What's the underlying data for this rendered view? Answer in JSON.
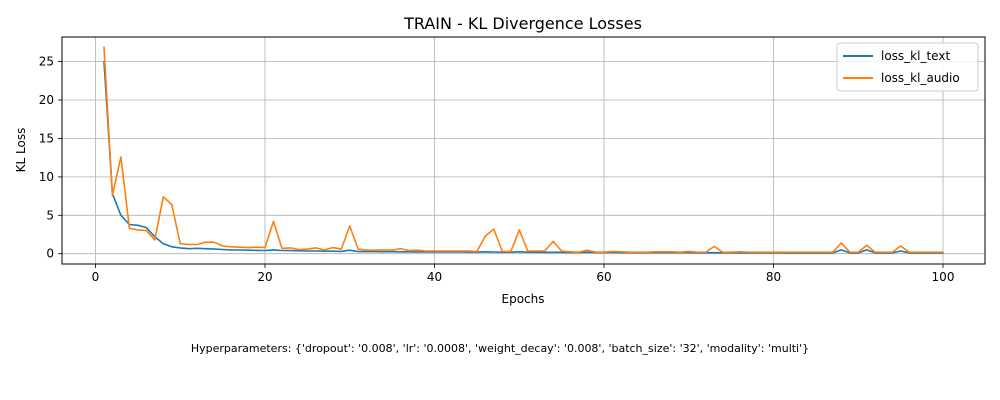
{
  "chart_data": {
    "type": "line",
    "title": "TRAIN - KL Divergence Losses",
    "xlabel": "Epochs",
    "ylabel": "KL Loss",
    "xlim": [
      -3.95,
      104.95
    ],
    "ylim": [
      -1.34,
      28.2
    ],
    "xticks": [
      0,
      20,
      40,
      60,
      80,
      100
    ],
    "yticks": [
      0,
      5,
      10,
      15,
      20,
      25
    ],
    "grid": true,
    "legend_position": "top-right",
    "series": [
      {
        "name": "loss_kl_text",
        "color": "#1f77b4",
        "x": [
          1,
          2,
          3,
          4,
          5,
          6,
          7,
          8,
          9,
          10,
          11,
          12,
          13,
          14,
          15,
          16,
          17,
          18,
          19,
          20,
          21,
          22,
          23,
          24,
          25,
          26,
          27,
          28,
          29,
          30,
          31,
          32,
          33,
          34,
          35,
          36,
          37,
          38,
          39,
          40,
          41,
          42,
          43,
          44,
          45,
          46,
          47,
          48,
          49,
          50,
          51,
          52,
          53,
          54,
          55,
          56,
          57,
          58,
          59,
          60,
          61,
          62,
          63,
          64,
          65,
          66,
          67,
          68,
          69,
          70,
          71,
          72,
          73,
          74,
          75,
          76,
          77,
          78,
          79,
          80,
          81,
          82,
          83,
          84,
          85,
          86,
          87,
          88,
          89,
          90,
          91,
          92,
          93,
          94,
          95,
          96,
          97,
          98,
          99,
          100
        ],
        "y": [
          25.0,
          7.8,
          5.0,
          3.8,
          3.7,
          3.4,
          2.2,
          1.3,
          0.9,
          0.75,
          0.65,
          0.7,
          0.65,
          0.6,
          0.55,
          0.5,
          0.48,
          0.45,
          0.43,
          0.42,
          0.5,
          0.42,
          0.4,
          0.38,
          0.35,
          0.35,
          0.33,
          0.32,
          0.3,
          0.45,
          0.28,
          0.27,
          0.27,
          0.26,
          0.26,
          0.25,
          0.25,
          0.24,
          0.24,
          0.23,
          0.22,
          0.22,
          0.22,
          0.21,
          0.21,
          0.25,
          0.22,
          0.2,
          0.19,
          0.25,
          0.19,
          0.19,
          0.18,
          0.18,
          0.18,
          0.17,
          0.17,
          0.2,
          0.16,
          0.16,
          0.16,
          0.15,
          0.15,
          0.15,
          0.15,
          0.15,
          0.14,
          0.14,
          0.14,
          0.14,
          0.13,
          0.13,
          0.13,
          0.13,
          0.13,
          0.12,
          0.12,
          0.12,
          0.12,
          0.12,
          0.12,
          0.11,
          0.11,
          0.11,
          0.11,
          0.11,
          0.11,
          0.5,
          0.11,
          0.11,
          0.5,
          0.11,
          0.1,
          0.1,
          0.35,
          0.1,
          0.1,
          0.1,
          0.1,
          0.1
        ]
      },
      {
        "name": "loss_kl_audio",
        "color": "#ff7f0e",
        "x": [
          1,
          2,
          3,
          4,
          5,
          6,
          7,
          8,
          9,
          10,
          11,
          12,
          13,
          14,
          15,
          16,
          17,
          18,
          19,
          20,
          21,
          22,
          23,
          24,
          25,
          26,
          27,
          28,
          29,
          30,
          31,
          32,
          33,
          34,
          35,
          36,
          37,
          38,
          39,
          40,
          41,
          42,
          43,
          44,
          45,
          46,
          47,
          48,
          49,
          50,
          51,
          52,
          53,
          54,
          55,
          56,
          57,
          58,
          59,
          60,
          61,
          62,
          63,
          64,
          65,
          66,
          67,
          68,
          69,
          70,
          71,
          72,
          73,
          74,
          75,
          76,
          77,
          78,
          79,
          80,
          81,
          82,
          83,
          84,
          85,
          86,
          87,
          88,
          89,
          90,
          91,
          92,
          93,
          94,
          95,
          96,
          97,
          98,
          99,
          100
        ],
        "y": [
          26.9,
          7.6,
          12.6,
          3.3,
          3.1,
          3.0,
          1.8,
          7.4,
          6.4,
          1.3,
          1.2,
          1.2,
          1.5,
          1.5,
          1.0,
          0.9,
          0.85,
          0.8,
          0.85,
          0.8,
          4.2,
          0.7,
          0.75,
          0.55,
          0.6,
          0.75,
          0.5,
          0.8,
          0.6,
          3.6,
          0.6,
          0.45,
          0.45,
          0.5,
          0.45,
          0.65,
          0.4,
          0.45,
          0.35,
          0.35,
          0.35,
          0.35,
          0.35,
          0.35,
          0.3,
          2.3,
          3.2,
          0.3,
          0.3,
          3.1,
          0.35,
          0.35,
          0.35,
          1.6,
          0.35,
          0.25,
          0.2,
          0.45,
          0.2,
          0.2,
          0.3,
          0.25,
          0.2,
          0.2,
          0.2,
          0.25,
          0.25,
          0.25,
          0.2,
          0.3,
          0.2,
          0.2,
          0.95,
          0.2,
          0.2,
          0.25,
          0.2,
          0.2,
          0.2,
          0.2,
          0.2,
          0.2,
          0.2,
          0.2,
          0.2,
          0.2,
          0.2,
          1.4,
          0.2,
          0.2,
          1.1,
          0.2,
          0.2,
          0.2,
          1.0,
          0.2,
          0.2,
          0.2,
          0.2,
          0.2
        ]
      }
    ]
  },
  "footer": {
    "hyperparameters": "Hyperparameters: {'dropout': '0.008', 'lr': '0.0008', 'weight_decay': '0.008', 'batch_size': '32', 'modality': 'multi'}"
  }
}
